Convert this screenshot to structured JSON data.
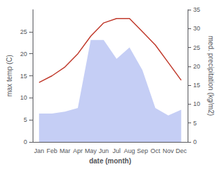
{
  "chart_data": {
    "type": "line",
    "categories": [
      "Jan",
      "Feb",
      "Mar",
      "Apr",
      "May",
      "Jun",
      "Jul",
      "Aug",
      "Sep",
      "Oct",
      "Nov",
      "Dec"
    ],
    "series": [
      {
        "type": "area",
        "color": "#c5cef5",
        "axis": "y2",
        "values": [
          7.5,
          7.5,
          8.0,
          9.0,
          27.0,
          27.0,
          22.0,
          25.0,
          19.0,
          9.0,
          7.0,
          8.5
        ]
      },
      {
        "type": "line",
        "color": "#c0392b",
        "values": [
          13.5,
          15.0,
          17.0,
          20.0,
          24.0,
          27.0,
          28.0,
          28.0,
          25.0,
          22.0,
          18.0,
          14.0
        ]
      }
    ],
    "xlabel": "date (month)",
    "ylabel": "max temp (C)",
    "y2label": "med. precipitation (kg/m2)",
    "ylim": [
      0,
      30
    ],
    "yticks": [
      0,
      5,
      10,
      15,
      20,
      25
    ],
    "y2lim": [
      0,
      35
    ],
    "y2ticks": [
      0,
      5,
      10,
      15,
      20,
      25,
      30,
      35
    ],
    "grid": false
  }
}
